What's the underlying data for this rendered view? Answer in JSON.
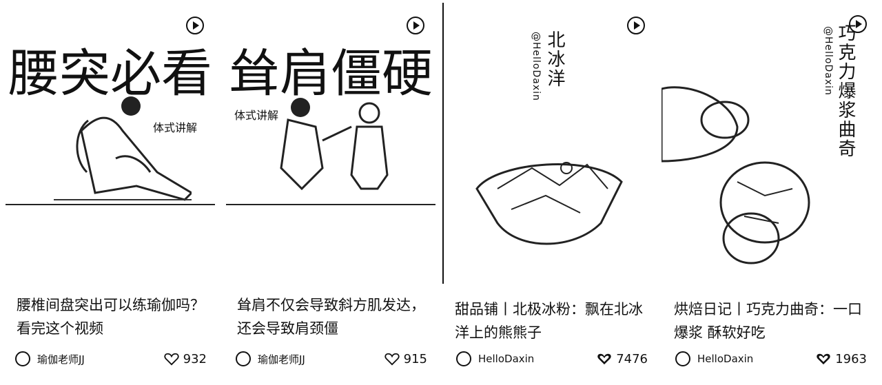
{
  "cards": [
    {
      "overlay_big": "腰突必看",
      "overlay_sub": "体式讲解",
      "title": "腰椎间盘突出可以练瑜伽吗？看完这个视频",
      "author": "瑜伽老师JJ",
      "likes": "932",
      "icon_play": "play-icon",
      "icon_like": "heart-outline-icon"
    },
    {
      "overlay_big": "耸肩僵硬",
      "overlay_sub": "体式讲解",
      "title": "耸肩不仅会导致斜方肌发达，还会导致肩颈僵",
      "author": "瑜伽老师JJ",
      "likes": "915",
      "icon_play": "play-icon",
      "icon_like": "heart-outline-icon"
    },
    {
      "overlay_vertical": "北冰洋",
      "overlay_credit": "@HelloDaxin",
      "title": "甜品铺丨北极冰粉：飘在北冰洋上的熊熊子",
      "author": "HelloDaxin",
      "likes": "7476",
      "icon_play": "play-icon",
      "icon_like": "heart-filled-icon"
    },
    {
      "overlay_vertical": "巧克力爆浆曲奇",
      "overlay_credit": "@HelloDaxin",
      "title": "烘焙日记丨巧克力曲奇：一口爆浆 酥软好吃",
      "author": "HelloDaxin",
      "likes": "1963",
      "icon_play": "play-icon",
      "icon_like": "heart-filled-icon"
    }
  ]
}
